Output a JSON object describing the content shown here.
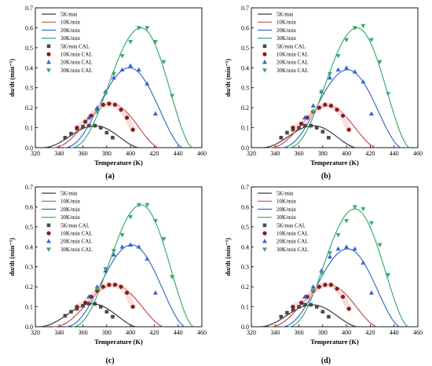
{
  "colors": {
    "5K": "#3b3b3b",
    "10K": "#c0504d",
    "20K": "#3a6fc4",
    "30K": "#3cae6e",
    "m5K": "#4a4a4a",
    "m10K": "#8b1a1a",
    "m20K": "#3a62d6",
    "m30K": "#3aa86a"
  },
  "chart_data": [
    {
      "type": "line",
      "panel": "(a)",
      "xlabel": "Temperature (K)",
      "ylabel": "dα/dt (min⁻¹)",
      "xlim": [
        320,
        460
      ],
      "ylim": [
        0,
        0.7
      ],
      "xticks": [
        320,
        340,
        360,
        380,
        400,
        420,
        440,
        460
      ],
      "yticks": [
        0,
        0.1,
        0.2,
        0.3,
        0.4,
        0.5,
        0.6,
        0.7
      ],
      "legend": [
        "5K/min",
        "10K/min",
        "20K/min",
        "30K/min",
        "5K/min CAL",
        "10K/min CAL",
        "20K/min CAL",
        "30K/min CAL"
      ],
      "curves": [
        {
          "name": "5K/min",
          "peak_x": 370,
          "peak_y": 0.11,
          "start": 325,
          "end": 407
        },
        {
          "name": "10K/min",
          "peak_x": 384,
          "peak_y": 0.22,
          "start": 334,
          "end": 424
        },
        {
          "name": "20K/min",
          "peak_x": 399,
          "peak_y": 0.4,
          "start": 344,
          "end": 444
        },
        {
          "name": "30K/min",
          "peak_x": 409,
          "peak_y": 0.6,
          "start": 350,
          "end": 452
        }
      ],
      "series": [
        {
          "name": "5K/min CAL",
          "marker": "square",
          "x": [
            345,
            350,
            355,
            360,
            365,
            370,
            375,
            380,
            385
          ],
          "y": [
            0.05,
            0.07,
            0.095,
            0.105,
            0.11,
            0.11,
            0.1,
            0.075,
            0.05
          ]
        },
        {
          "name": "10K/min CAL",
          "marker": "circle",
          "x": [
            355,
            362,
            367,
            372,
            377,
            382,
            387,
            392,
            397,
            402
          ],
          "y": [
            0.1,
            0.13,
            0.16,
            0.19,
            0.215,
            0.22,
            0.215,
            0.19,
            0.15,
            0.09
          ]
        },
        {
          "name": "20K/min CAL",
          "marker": "triangle-up",
          "x": [
            365,
            372,
            379,
            386,
            393,
            400,
            407,
            414,
            421
          ],
          "y": [
            0.15,
            0.2,
            0.28,
            0.35,
            0.39,
            0.41,
            0.39,
            0.32,
            0.17
          ]
        },
        {
          "name": "30K/min CAL",
          "marker": "triangle-down",
          "x": [
            372,
            379,
            386,
            393,
            400,
            407,
            414,
            421,
            428,
            435
          ],
          "y": [
            0.18,
            0.27,
            0.37,
            0.46,
            0.53,
            0.6,
            0.6,
            0.53,
            0.43,
            0.26
          ]
        }
      ]
    },
    {
      "type": "line",
      "panel": "(b)",
      "xlabel": "Temperature (K)",
      "ylabel": "dα/dt (min⁻¹)",
      "xlim": [
        320,
        460
      ],
      "ylim": [
        0,
        0.7
      ],
      "xticks": [
        320,
        340,
        360,
        380,
        400,
        420,
        440,
        460
      ],
      "yticks": [
        0,
        0.1,
        0.2,
        0.3,
        0.4,
        0.5,
        0.6,
        0.7
      ],
      "legend": [
        "5K/min",
        "10K/min",
        "20K/min",
        "30K/min",
        "5K/min CAL",
        "10K/min CAL",
        "20K/min CAL",
        "30K/min CAL"
      ],
      "curves": [
        {
          "name": "5K/min",
          "peak_x": 372,
          "peak_y": 0.11,
          "start": 328,
          "end": 408
        },
        {
          "name": "10K/min",
          "peak_x": 384,
          "peak_y": 0.21,
          "start": 335,
          "end": 425
        },
        {
          "name": "20K/min",
          "peak_x": 401,
          "peak_y": 0.39,
          "start": 345,
          "end": 446
        },
        {
          "name": "30K/min",
          "peak_x": 409,
          "peak_y": 0.6,
          "start": 351,
          "end": 453
        }
      ],
      "series": [
        {
          "name": "5K/min CAL",
          "marker": "square",
          "x": [
            345,
            350,
            355,
            360,
            365,
            370,
            375,
            380,
            385
          ],
          "y": [
            0.05,
            0.075,
            0.09,
            0.1,
            0.11,
            0.11,
            0.1,
            0.08,
            0.05
          ]
        },
        {
          "name": "10K/min CAL",
          "marker": "circle",
          "x": [
            355,
            362,
            367,
            372,
            377,
            382,
            387,
            392,
            397,
            402
          ],
          "y": [
            0.1,
            0.12,
            0.15,
            0.18,
            0.2,
            0.215,
            0.21,
            0.19,
            0.16,
            0.09
          ]
        },
        {
          "name": "20K/min CAL",
          "marker": "triangle-up",
          "x": [
            365,
            372,
            379,
            386,
            393,
            400,
            407,
            414,
            421
          ],
          "y": [
            0.15,
            0.21,
            0.28,
            0.35,
            0.39,
            0.4,
            0.38,
            0.33,
            0.17
          ]
        },
        {
          "name": "30K/min CAL",
          "marker": "triangle-down",
          "x": [
            372,
            379,
            386,
            393,
            400,
            407,
            414,
            421,
            428,
            435
          ],
          "y": [
            0.18,
            0.28,
            0.37,
            0.46,
            0.54,
            0.6,
            0.61,
            0.54,
            0.43,
            0.27
          ]
        }
      ]
    },
    {
      "type": "line",
      "panel": "(c)",
      "xlabel": "Temperature (K)",
      "ylabel": "dα/dt (min⁻¹)",
      "xlim": [
        320,
        460
      ],
      "ylim": [
        0,
        0.7
      ],
      "xticks": [
        320,
        340,
        360,
        380,
        400,
        420,
        440,
        460
      ],
      "yticks": [
        0,
        0.1,
        0.2,
        0.3,
        0.4,
        0.5,
        0.6,
        0.7
      ],
      "legend": [
        "5K/min",
        "10K/min",
        "20K/min",
        "30K/min",
        "5K/min CAL",
        "10K/min CAL",
        "20K/min CAL",
        "30K/min CAL"
      ],
      "curves": [
        {
          "name": "5K/min",
          "peak_x": 368,
          "peak_y": 0.115,
          "start": 322,
          "end": 405
        },
        {
          "name": "10K/min",
          "peak_x": 386,
          "peak_y": 0.21,
          "start": 335,
          "end": 428
        },
        {
          "name": "20K/min",
          "peak_x": 401,
          "peak_y": 0.41,
          "start": 345,
          "end": 446
        },
        {
          "name": "30K/min",
          "peak_x": 409,
          "peak_y": 0.61,
          "start": 351,
          "end": 453
        }
      ],
      "series": [
        {
          "name": "5K/min CAL",
          "marker": "square",
          "x": [
            345,
            350,
            355,
            360,
            365,
            370,
            375,
            380,
            385
          ],
          "y": [
            0.055,
            0.075,
            0.09,
            0.105,
            0.115,
            0.115,
            0.1,
            0.075,
            0.05
          ]
        },
        {
          "name": "10K/min CAL",
          "marker": "circle",
          "x": [
            355,
            362,
            367,
            372,
            377,
            382,
            387,
            392,
            397,
            402
          ],
          "y": [
            0.1,
            0.12,
            0.15,
            0.18,
            0.2,
            0.21,
            0.21,
            0.2,
            0.17,
            0.1
          ]
        },
        {
          "name": "20K/min CAL",
          "marker": "triangle-up",
          "x": [
            365,
            372,
            379,
            386,
            393,
            400,
            407,
            414,
            421
          ],
          "y": [
            0.15,
            0.2,
            0.28,
            0.36,
            0.4,
            0.41,
            0.4,
            0.34,
            0.17
          ]
        },
        {
          "name": "30K/min CAL",
          "marker": "triangle-down",
          "x": [
            372,
            379,
            386,
            393,
            400,
            407,
            414,
            421,
            428,
            435
          ],
          "y": [
            0.19,
            0.29,
            0.38,
            0.46,
            0.55,
            0.61,
            0.61,
            0.53,
            0.44,
            0.25
          ]
        }
      ]
    },
    {
      "type": "line",
      "panel": "(d)",
      "xlabel": "Temperature (K)",
      "ylabel": "dα/dt (min⁻¹)",
      "xlim": [
        320,
        460
      ],
      "ylim": [
        0,
        0.7
      ],
      "xticks": [
        320,
        340,
        360,
        380,
        400,
        420,
        440,
        460
      ],
      "yticks": [
        0,
        0.1,
        0.2,
        0.3,
        0.4,
        0.5,
        0.6,
        0.7
      ],
      "legend": [
        "5K/min",
        "10K/min",
        "20K/min",
        "30K/min",
        "5K/min CAL",
        "10K/min CAL",
        "20K/min CAL",
        "30K/min CAL"
      ],
      "curves": [
        {
          "name": "5K/min",
          "peak_x": 371,
          "peak_y": 0.11,
          "start": 326,
          "end": 409
        },
        {
          "name": "10K/min",
          "peak_x": 385,
          "peak_y": 0.21,
          "start": 335,
          "end": 426
        },
        {
          "name": "20K/min",
          "peak_x": 401,
          "peak_y": 0.39,
          "start": 345,
          "end": 445
        },
        {
          "name": "30K/min",
          "peak_x": 407,
          "peak_y": 0.59,
          "start": 351,
          "end": 452
        }
      ],
      "series": [
        {
          "name": "5K/min CAL",
          "marker": "square",
          "x": [
            345,
            350,
            355,
            360,
            365,
            370,
            375,
            380,
            385
          ],
          "y": [
            0.05,
            0.07,
            0.085,
            0.1,
            0.11,
            0.11,
            0.1,
            0.075,
            0.05
          ]
        },
        {
          "name": "10K/min CAL",
          "marker": "circle",
          "x": [
            355,
            362,
            367,
            372,
            377,
            382,
            387,
            392,
            397,
            402
          ],
          "y": [
            0.1,
            0.12,
            0.15,
            0.18,
            0.2,
            0.21,
            0.21,
            0.19,
            0.15,
            0.09
          ]
        },
        {
          "name": "20K/min CAL",
          "marker": "triangle-up",
          "x": [
            365,
            372,
            379,
            386,
            393,
            400,
            407,
            414,
            421
          ],
          "y": [
            0.15,
            0.2,
            0.28,
            0.35,
            0.39,
            0.4,
            0.39,
            0.32,
            0.17
          ]
        },
        {
          "name": "30K/min CAL",
          "marker": "triangle-down",
          "x": [
            372,
            379,
            386,
            393,
            400,
            407,
            414,
            421,
            428,
            435
          ],
          "y": [
            0.18,
            0.27,
            0.37,
            0.46,
            0.53,
            0.6,
            0.59,
            0.52,
            0.41,
            0.26
          ]
        }
      ]
    }
  ]
}
